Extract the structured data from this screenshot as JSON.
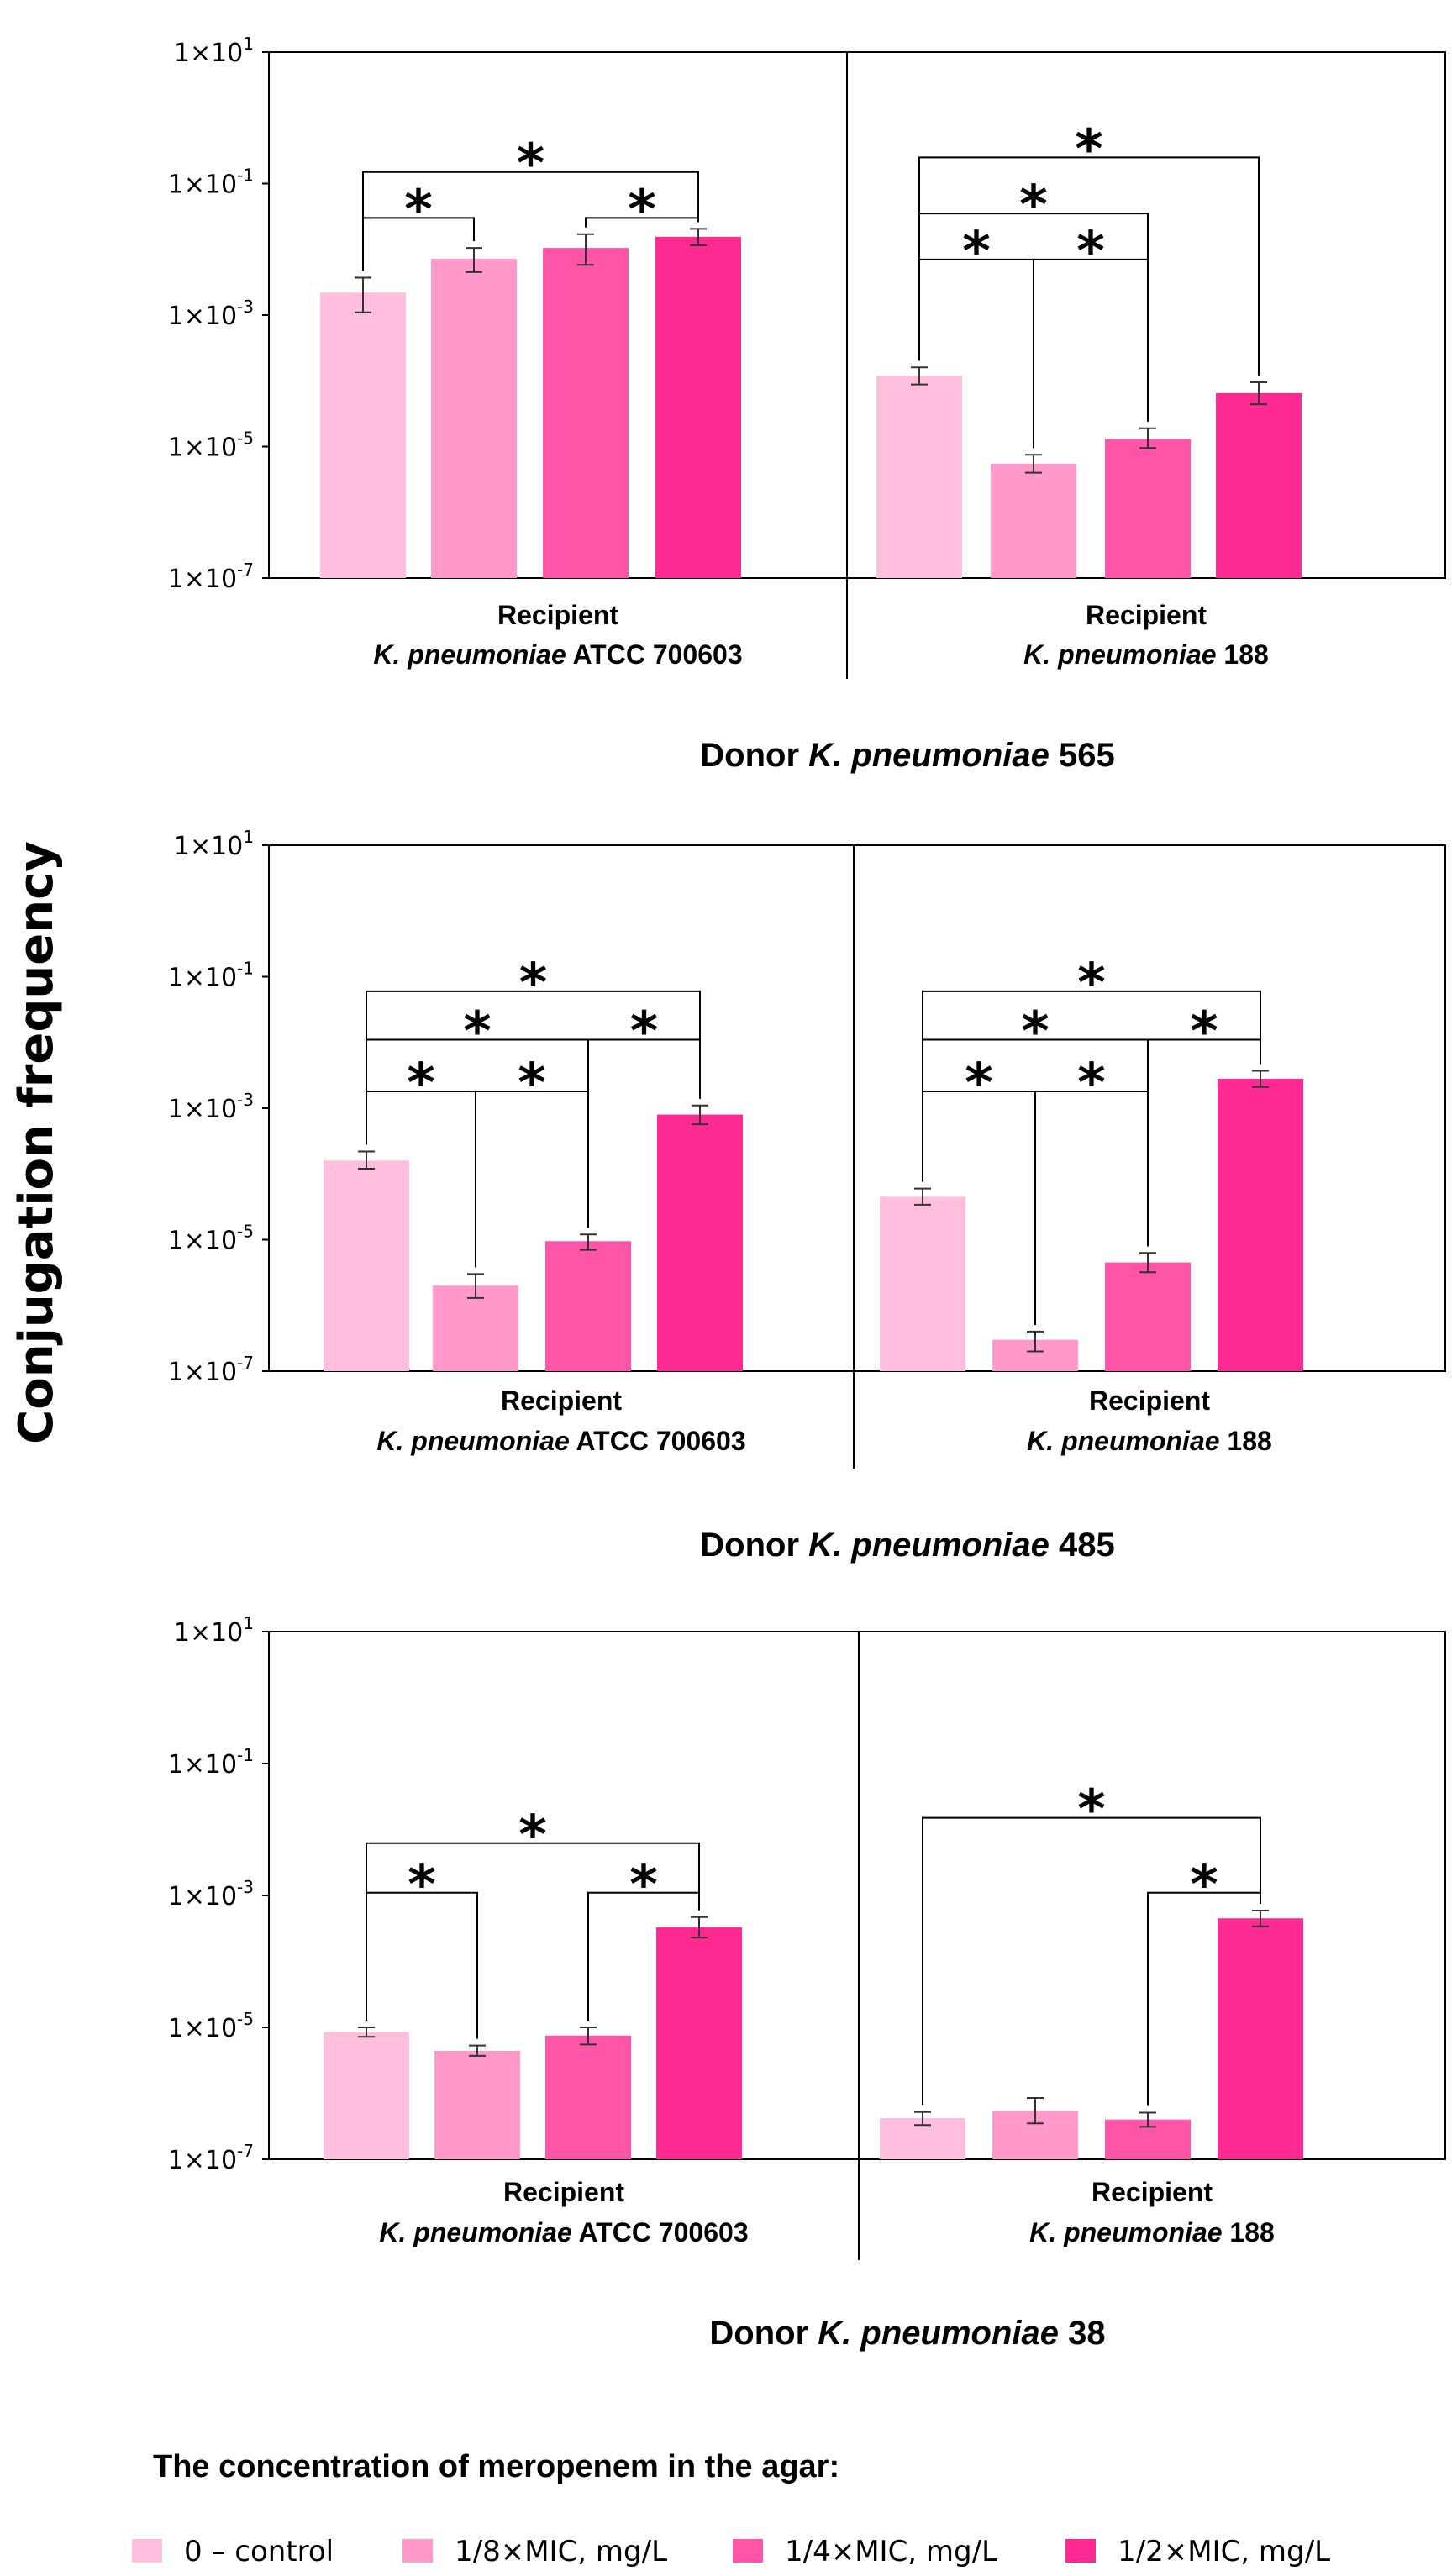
{
  "y_title": "Conjugation frequency",
  "colors": [
    "#FFBFDC",
    "#FF99CC",
    "#FF55A8",
    "#FF2A91"
  ],
  "chart_data": [
    {
      "type": "bar",
      "yscale": "log",
      "ylim": [
        1e-07,
        10
      ],
      "y_ticks": [
        {
          "m": "1×10",
          "e": "1"
        },
        {
          "m": "1×10",
          "e": "-1"
        },
        {
          "m": "1×10",
          "e": "-3"
        },
        {
          "m": "1×10",
          "e": "-5"
        },
        {
          "m": "1×10",
          "e": "-7"
        }
      ],
      "title": "Donor K. pneumoniae 565",
      "title_parts": [
        {
          "t": "Donor ",
          "i": false
        },
        {
          "t": "K. pneumoniae",
          "i": true
        },
        {
          "t": " 565",
          "i": false
        }
      ],
      "groups": [
        {
          "label_1": "Recipient",
          "label_2": [
            {
              "t": "K. pneumoniae",
              "i": true
            },
            {
              "t": " ATCC 700603",
              "i": false
            }
          ],
          "label_2_full": "K. pneumoniae ATCC 700603",
          "values": [
            0.0022,
            0.0072,
            0.0105,
            0.0155
          ],
          "err_low": [
            0.0011,
            0.0045,
            0.0058,
            0.0115
          ],
          "err_high": [
            0.0037,
            0.0105,
            0.017,
            0.0205
          ],
          "sig": [
            {
              "from": 0,
              "to": 1,
              "level": 0.03,
              "label": "*"
            },
            {
              "from": 2,
              "to": 3,
              "level": 0.03,
              "label": "*"
            },
            {
              "from": 0,
              "to": 3,
              "level": 0.15,
              "label": "*"
            }
          ]
        },
        {
          "label_1": "Recipient",
          "label_2": [
            {
              "t": "K. pneumoniae",
              "i": true
            },
            {
              "t": " 188",
              "i": false
            }
          ],
          "label_2_full": "K. pneumoniae 188",
          "values": [
            0.00012,
            5.5e-06,
            1.3e-05,
            6.5e-05
          ],
          "err_low": [
            8.8e-05,
            4e-06,
            9.5e-06,
            4.4e-05
          ],
          "err_high": [
            0.00016,
            7.5e-06,
            1.9e-05,
            9.5e-05
          ],
          "sig": [
            {
              "from": 0,
              "to": 1,
              "level": 0.007,
              "label": "*"
            },
            {
              "from": 1,
              "to": 2,
              "level": 0.007,
              "label": "*"
            },
            {
              "from": 0,
              "to": 2,
              "level": 0.035,
              "label": "*"
            },
            {
              "from": 0,
              "to": 3,
              "level": 0.25,
              "label": "*"
            }
          ]
        }
      ]
    },
    {
      "type": "bar",
      "yscale": "log",
      "ylim": [
        1e-07,
        10
      ],
      "y_ticks": [
        {
          "m": "1×10",
          "e": "1"
        },
        {
          "m": "1×10",
          "e": "-1"
        },
        {
          "m": "1×10",
          "e": "-3"
        },
        {
          "m": "1×10",
          "e": "-5"
        },
        {
          "m": "1×10",
          "e": "-7"
        }
      ],
      "title": "Donor K. pneumoniae 485",
      "title_parts": [
        {
          "t": "Donor ",
          "i": false
        },
        {
          "t": "K. pneumoniae",
          "i": true
        },
        {
          "t": " 485",
          "i": false
        }
      ],
      "groups": [
        {
          "label_1": "Recipient",
          "label_2": [
            {
              "t": "K. pneumoniae",
              "i": true
            },
            {
              "t": " ATCC 700603",
              "i": false
            }
          ],
          "label_2_full": "K. pneumoniae ATCC 700603",
          "values": [
            0.00016,
            2e-06,
            9.5e-06,
            0.0008
          ],
          "err_low": [
            0.00012,
            1.3e-06,
            7e-06,
            0.00057
          ],
          "err_high": [
            0.00022,
            3e-06,
            1.2e-05,
            0.0011
          ],
          "sig": [
            {
              "from": 0,
              "to": 1,
              "level": 0.0018,
              "label": "*"
            },
            {
              "from": 1,
              "to": 2,
              "level": 0.0018,
              "label": "*"
            },
            {
              "from": 2,
              "to": 3,
              "level": 0.011,
              "label": "*"
            },
            {
              "from": 0,
              "to": 2,
              "level": 0.011,
              "label": "*"
            },
            {
              "from": 0,
              "to": 3,
              "level": 0.06,
              "label": "*"
            }
          ]
        },
        {
          "label_1": "Recipient",
          "label_2": [
            {
              "t": "K. pneumoniae",
              "i": true
            },
            {
              "t": " 188",
              "i": false
            }
          ],
          "label_2_full": "K. pneumoniae 188",
          "values": [
            4.5e-05,
            3e-07,
            4.5e-06,
            0.0028
          ],
          "err_low": [
            3.4e-05,
            2e-07,
            3.2e-06,
            0.0021
          ],
          "err_high": [
            6e-05,
            4e-07,
            6.3e-06,
            0.0037
          ],
          "sig": [
            {
              "from": 0,
              "to": 1,
              "level": 0.0018,
              "label": "*"
            },
            {
              "from": 1,
              "to": 2,
              "level": 0.0018,
              "label": "*"
            },
            {
              "from": 2,
              "to": 3,
              "level": 0.011,
              "label": "*"
            },
            {
              "from": 0,
              "to": 2,
              "level": 0.011,
              "label": "*"
            },
            {
              "from": 0,
              "to": 3,
              "level": 0.06,
              "label": "*"
            }
          ]
        }
      ]
    },
    {
      "type": "bar",
      "yscale": "log",
      "ylim": [
        1e-07,
        10
      ],
      "y_ticks": [
        {
          "m": "1×10",
          "e": "1"
        },
        {
          "m": "1×10",
          "e": "-1"
        },
        {
          "m": "1×10",
          "e": "-3"
        },
        {
          "m": "1×10",
          "e": "-5"
        },
        {
          "m": "1×10",
          "e": "-7"
        }
      ],
      "title": "Donor K. pneumoniae 38",
      "title_parts": [
        {
          "t": "Donor ",
          "i": false
        },
        {
          "t": "K. pneumoniae",
          "i": true
        },
        {
          "t": " 38",
          "i": false
        }
      ],
      "groups": [
        {
          "label_1": "Recipient",
          "label_2": [
            {
              "t": "K. pneumoniae",
              "i": true
            },
            {
              "t": " ATCC 700603",
              "i": false
            }
          ],
          "label_2_full": "K. pneumoniae ATCC 700603",
          "values": [
            8.5e-06,
            4.4e-06,
            7.5e-06,
            0.00033
          ],
          "err_low": [
            7.2e-06,
            3.7e-06,
            5.5e-06,
            0.00023
          ],
          "err_high": [
            1e-05,
            5.3e-06,
            1e-05,
            0.00047
          ],
          "sig": [
            {
              "from": 0,
              "to": 1,
              "level": 0.0011,
              "label": "*"
            },
            {
              "from": 2,
              "to": 3,
              "level": 0.0011,
              "label": "*"
            },
            {
              "from": 0,
              "to": 3,
              "level": 0.0062,
              "label": "*"
            }
          ]
        },
        {
          "label_1": "Recipient",
          "label_2": [
            {
              "t": "K. pneumoniae",
              "i": true
            },
            {
              "t": " 188",
              "i": false
            }
          ],
          "label_2_full": "K. pneumoniae 188",
          "values": [
            4.2e-07,
            5.5e-07,
            4e-07,
            0.00045
          ],
          "err_low": [
            3.3e-07,
            3.5e-07,
            3.1e-07,
            0.00034
          ],
          "err_high": [
            5.2e-07,
            8.5e-07,
            5.1e-07,
            0.00059
          ],
          "sig": [
            {
              "from": 2,
              "to": 3,
              "level": 0.0011,
              "label": "*"
            },
            {
              "from": 0,
              "to": 3,
              "level": 0.015,
              "label": "*"
            }
          ]
        }
      ]
    }
  ],
  "legend": {
    "title": "The concentration of meropenem in the agar:",
    "items": [
      "0 – control",
      "1/8×MIC, mg/L",
      "1/4×MIC, mg/L",
      "1/2×MIC, mg/L"
    ]
  }
}
